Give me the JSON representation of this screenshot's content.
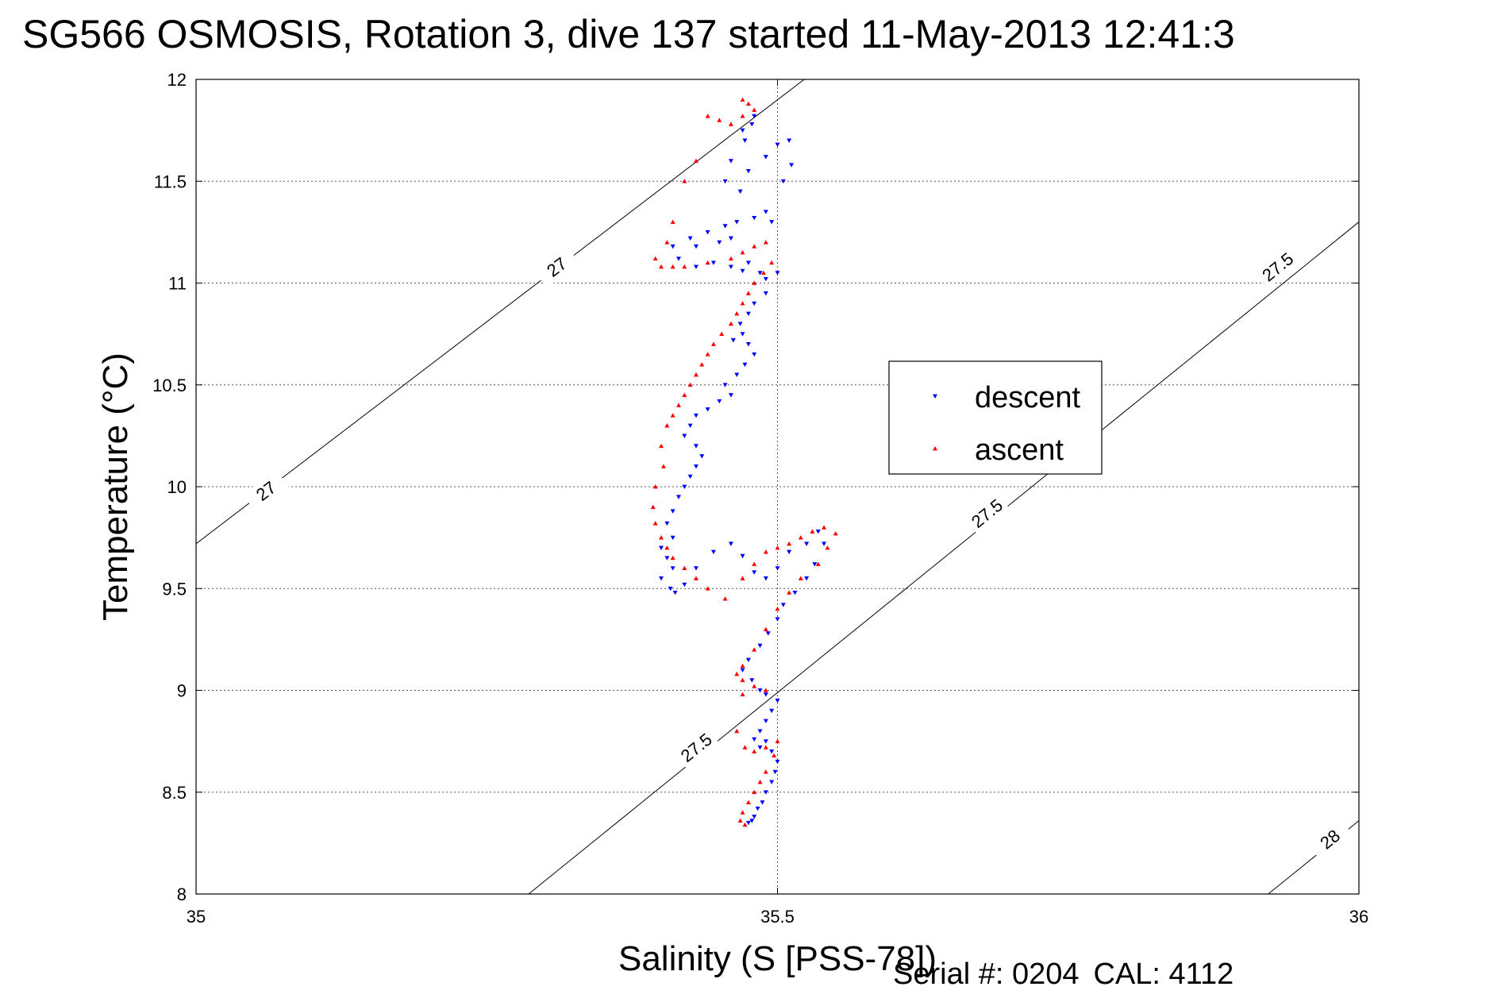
{
  "page": {
    "title": "SG566 OSMOSIS, Rotation 3, dive 137 started 11-May-2013 12:41:3",
    "serial_label": "Serial #: 0204",
    "cal_label": "CAL: 4112"
  },
  "chart_data": {
    "type": "scatter",
    "title": "SG566 OSMOSIS, Rotation 3, dive 137 started 11-May-2013 12:41:3",
    "xlabel": "Salinity (S [PSS-78])",
    "ylabel": "Temperature (°C)",
    "xlim": [
      35,
      36
    ],
    "ylim": [
      8,
      12
    ],
    "xticks": [
      35,
      35.5,
      36
    ],
    "xtick_labels": [
      "35",
      "35.5",
      "36"
    ],
    "yticks": [
      8,
      8.5,
      9,
      9.5,
      10,
      10.5,
      11,
      11.5,
      12
    ],
    "ytick_labels": [
      "8",
      "8.5",
      "9",
      "9.5",
      "10",
      "10.5",
      "11",
      "11.5",
      "12"
    ],
    "grid": true,
    "legend_position": "center-right",
    "series": [
      {
        "name": "descent",
        "color": "#0000ff",
        "marker": "triangle-down",
        "x": [
          35.48,
          35.478,
          35.47,
          35.472,
          35.46,
          35.455,
          35.468,
          35.475,
          35.49,
          35.5,
          35.51,
          35.512,
          35.505,
          35.49,
          35.495,
          35.48,
          35.465,
          35.455,
          35.46,
          35.45,
          35.43,
          35.44,
          35.425,
          35.41,
          35.415,
          35.43,
          35.445,
          35.46,
          35.47,
          35.475,
          35.485,
          35.49,
          35.5,
          35.49,
          35.48,
          35.475,
          35.468,
          35.47,
          35.462,
          35.475,
          35.48,
          35.472,
          35.465,
          35.455,
          35.46,
          35.45,
          35.44,
          35.43,
          35.425,
          35.42,
          35.43,
          35.435,
          35.43,
          35.425,
          35.42,
          35.415,
          35.41,
          35.405,
          35.41,
          35.4,
          35.405,
          35.41,
          35.4,
          35.408,
          35.412,
          35.42,
          35.43,
          35.445,
          35.46,
          35.47,
          35.48,
          35.49,
          35.5,
          35.51,
          35.525,
          35.535,
          35.54,
          35.532,
          35.525,
          35.515,
          35.505,
          35.5,
          35.492,
          35.485,
          35.475,
          35.47,
          35.478,
          35.485,
          35.49,
          35.5,
          35.495,
          35.49,
          35.485,
          35.48,
          35.485,
          35.49,
          35.495,
          35.5,
          35.498,
          35.495,
          35.49,
          35.487,
          35.483,
          35.48,
          35.478,
          35.475
        ],
        "y": [
          11.82,
          11.78,
          11.75,
          11.7,
          11.6,
          11.5,
          11.45,
          11.55,
          11.62,
          11.68,
          11.7,
          11.58,
          11.5,
          11.35,
          11.3,
          11.32,
          11.3,
          11.28,
          11.22,
          11.2,
          11.18,
          11.25,
          11.22,
          11.18,
          11.12,
          11.08,
          11.1,
          11.08,
          11.06,
          11.1,
          11.05,
          11.02,
          11.05,
          10.95,
          10.9,
          10.85,
          10.8,
          10.75,
          10.72,
          10.7,
          10.65,
          10.6,
          10.55,
          10.5,
          10.45,
          10.42,
          10.38,
          10.35,
          10.3,
          10.25,
          10.2,
          10.15,
          10.1,
          10.05,
          10.0,
          9.95,
          9.88,
          9.82,
          9.75,
          9.7,
          9.65,
          9.6,
          9.55,
          9.5,
          9.48,
          9.52,
          9.6,
          9.68,
          9.72,
          9.66,
          9.58,
          9.55,
          9.6,
          9.68,
          9.72,
          9.78,
          9.72,
          9.62,
          9.55,
          9.48,
          9.42,
          9.35,
          9.28,
          9.22,
          9.15,
          9.1,
          9.05,
          9.0,
          8.98,
          8.95,
          8.9,
          8.85,
          8.8,
          8.76,
          8.72,
          8.75,
          8.7,
          8.65,
          8.6,
          8.55,
          8.5,
          8.45,
          8.42,
          8.38,
          8.36,
          8.35
        ]
      },
      {
        "name": "ascent",
        "color": "#ff0000",
        "marker": "triangle-up",
        "x": [
          35.47,
          35.475,
          35.48,
          35.47,
          35.46,
          35.45,
          35.44,
          35.43,
          35.42,
          35.41,
          35.405,
          35.395,
          35.4,
          35.41,
          35.42,
          35.44,
          35.46,
          35.47,
          35.48,
          35.49,
          35.495,
          35.488,
          35.48,
          35.475,
          35.47,
          35.465,
          35.46,
          35.452,
          35.445,
          35.44,
          35.435,
          35.43,
          35.425,
          35.42,
          35.415,
          35.41,
          35.405,
          35.4,
          35.402,
          35.395,
          35.393,
          35.395,
          35.4,
          35.405,
          35.41,
          35.42,
          35.43,
          35.44,
          35.455,
          35.47,
          35.48,
          35.49,
          35.5,
          35.51,
          35.52,
          35.53,
          35.54,
          35.55,
          35.543,
          35.535,
          35.52,
          35.51,
          35.5,
          35.49,
          35.48,
          35.47,
          35.465,
          35.47,
          35.48,
          35.49,
          35.47,
          35.465,
          35.472,
          35.48,
          35.49,
          35.5,
          35.497,
          35.49,
          35.485,
          35.48,
          35.475,
          35.47,
          35.468,
          35.472
        ],
        "y": [
          11.9,
          11.88,
          11.85,
          11.82,
          11.78,
          11.8,
          11.82,
          11.6,
          11.5,
          11.3,
          11.2,
          11.12,
          11.08,
          11.08,
          11.08,
          11.1,
          11.12,
          11.15,
          11.18,
          11.2,
          11.1,
          11.05,
          11.0,
          10.95,
          10.9,
          10.85,
          10.8,
          10.75,
          10.7,
          10.65,
          10.6,
          10.55,
          10.5,
          10.45,
          10.4,
          10.35,
          10.3,
          10.2,
          10.1,
          10.0,
          9.9,
          9.82,
          9.75,
          9.7,
          9.65,
          9.6,
          9.55,
          9.5,
          9.45,
          9.55,
          9.62,
          9.68,
          9.7,
          9.72,
          9.75,
          9.78,
          9.8,
          9.77,
          9.7,
          9.62,
          9.55,
          9.48,
          9.4,
          9.3,
          9.2,
          9.12,
          9.08,
          9.05,
          9.02,
          9.0,
          8.98,
          8.8,
          8.72,
          8.7,
          8.72,
          8.75,
          8.68,
          8.6,
          8.55,
          8.5,
          8.45,
          8.4,
          8.36,
          8.34
        ]
      }
    ],
    "contours": [
      {
        "label": "27",
        "x": [
          35.0,
          35.523
        ],
        "y": [
          9.72,
          12.0
        ],
        "label_positions": [
          [
            35.06,
            9.98
          ],
          [
            35.31,
            11.08
          ]
        ]
      },
      {
        "label": "27.5",
        "x": [
          35.286,
          36.0
        ],
        "y": [
          8.0,
          11.3
        ],
        "label_positions": [
          [
            35.43,
            8.72
          ],
          [
            35.68,
            9.87
          ],
          [
            35.93,
            11.08
          ]
        ]
      },
      {
        "label": "28",
        "x": [
          35.922,
          36.0
        ],
        "y": [
          8.0,
          8.36
        ],
        "label_positions": [
          [
            35.975,
            8.27
          ]
        ]
      }
    ]
  }
}
